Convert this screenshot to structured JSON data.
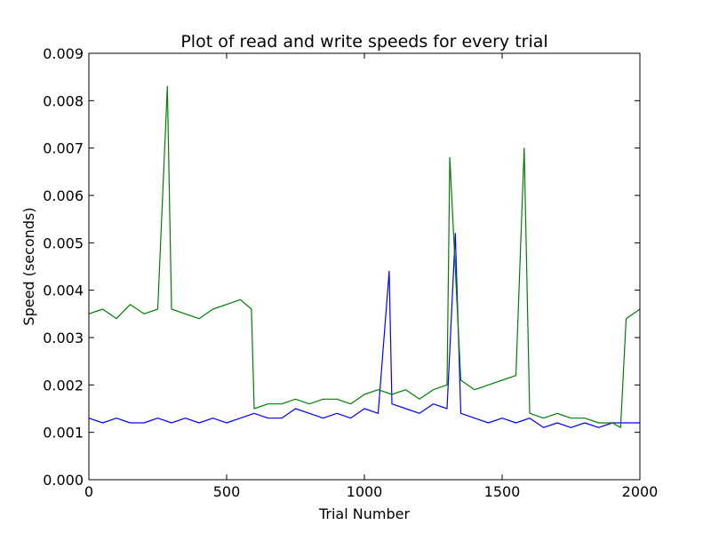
{
  "chart_data": {
    "type": "line",
    "title": "Plot of read and write speeds for every trial",
    "xlabel": "Trial Number",
    "ylabel": "Speed (seconds)",
    "xlim": [
      0,
      2000
    ],
    "ylim": [
      0.0,
      0.009
    ],
    "x_ticks": [
      0,
      500,
      1000,
      1500,
      2000
    ],
    "x_tick_labels": [
      "0",
      "500",
      "1000",
      "1500",
      "2000"
    ],
    "y_ticks": [
      0.0,
      0.001,
      0.002,
      0.003,
      0.004,
      0.005,
      0.006,
      0.007,
      0.008,
      0.009
    ],
    "y_tick_labels": [
      "0.000",
      "0.001",
      "0.002",
      "0.003",
      "0.004",
      "0.005",
      "0.006",
      "0.007",
      "0.008",
      "0.009"
    ],
    "grid": false,
    "legend": "none",
    "series": [
      {
        "color": "#0000ff",
        "x": [
          0,
          50,
          100,
          150,
          200,
          250,
          300,
          350,
          400,
          450,
          500,
          550,
          600,
          650,
          700,
          750,
          800,
          850,
          900,
          950,
          1000,
          1050,
          1090,
          1100,
          1150,
          1200,
          1250,
          1300,
          1330,
          1350,
          1400,
          1450,
          1500,
          1550,
          1600,
          1650,
          1700,
          1750,
          1800,
          1850,
          1900,
          1950,
          2000
        ],
        "y": [
          0.0013,
          0.0012,
          0.0013,
          0.0012,
          0.0012,
          0.0013,
          0.0012,
          0.0013,
          0.0012,
          0.0013,
          0.0012,
          0.0013,
          0.0014,
          0.0013,
          0.0013,
          0.0015,
          0.0014,
          0.0013,
          0.0014,
          0.0013,
          0.0015,
          0.0014,
          0.0044,
          0.0016,
          0.0015,
          0.0014,
          0.0016,
          0.0015,
          0.0052,
          0.0014,
          0.0013,
          0.0012,
          0.0013,
          0.0012,
          0.0013,
          0.0011,
          0.0012,
          0.0011,
          0.0012,
          0.0011,
          0.0012,
          0.0012,
          0.0012
        ]
      },
      {
        "color": "#008000",
        "x": [
          0,
          50,
          100,
          150,
          200,
          250,
          285,
          300,
          350,
          400,
          450,
          500,
          550,
          590,
          600,
          650,
          700,
          750,
          800,
          850,
          900,
          950,
          1000,
          1050,
          1100,
          1150,
          1200,
          1250,
          1300,
          1310,
          1350,
          1400,
          1450,
          1500,
          1550,
          1580,
          1600,
          1650,
          1700,
          1750,
          1800,
          1850,
          1900,
          1930,
          1950,
          2000
        ],
        "y": [
          0.0035,
          0.0036,
          0.0034,
          0.0037,
          0.0035,
          0.0036,
          0.0083,
          0.0036,
          0.0035,
          0.0034,
          0.0036,
          0.0037,
          0.0038,
          0.0036,
          0.0015,
          0.0016,
          0.0016,
          0.0017,
          0.0016,
          0.0017,
          0.0017,
          0.0016,
          0.0018,
          0.0019,
          0.0018,
          0.0019,
          0.0017,
          0.0019,
          0.002,
          0.0068,
          0.0021,
          0.0019,
          0.002,
          0.0021,
          0.0022,
          0.007,
          0.0014,
          0.0013,
          0.0014,
          0.0013,
          0.0013,
          0.0012,
          0.0012,
          0.0011,
          0.0034,
          0.0036
        ]
      }
    ]
  }
}
